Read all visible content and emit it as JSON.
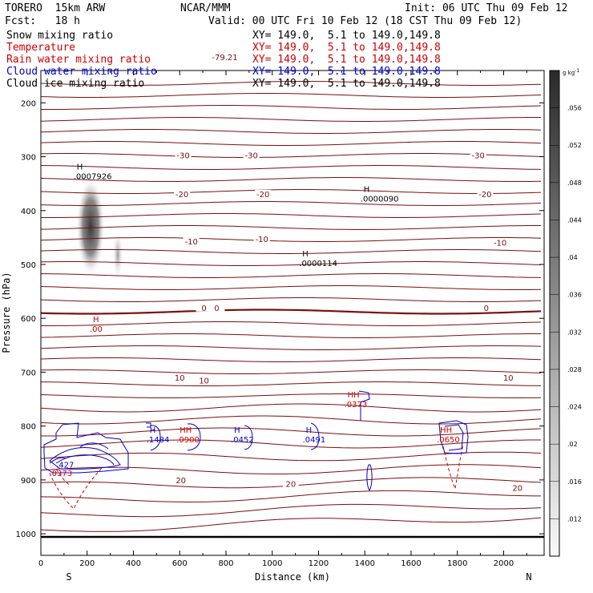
{
  "header": {
    "model": "TORERO  15km ARW",
    "org": "NCAR/MMM",
    "init": "Init: 06 UTC Thu 09 Feb 12",
    "fcst": "Fcst:   18 h",
    "valid": "Valid: 00 UTC Fri 10 Feb 12 (18 CST Thu 09 Feb 12)"
  },
  "fields": [
    {
      "name": "Snow mixing ratio",
      "xy": "XY= 149.0,  5.1 to 149.0,149.8",
      "color": "#000000"
    },
    {
      "name": "Temperature",
      "xy": "XY= 149.0,  5.1 to 149.0,149.8",
      "color": "#cc0000"
    },
    {
      "name": "Rain water mixing ratio",
      "xy": "XY= 149.0,  5.1 to 149.0,149.8",
      "color": "#cc0000"
    },
    {
      "name": "Cloud water mixing ratio",
      "xy": "XY= 149.0,  5.1 to 149.0,149.8",
      "color": "#0000cc"
    },
    {
      "name": "Cloud ice mixing ratio",
      "xy": "XY= 149.0,  5.1 to 149.0,149.8",
      "color": "#000000"
    }
  ],
  "chart_data": {
    "type": "contour_cross_section",
    "xlabel": "Distance (km)",
    "ylabel": "Pressure (hPa)",
    "xlim": [
      0,
      2175
    ],
    "ylim": [
      140,
      1040
    ],
    "x_ticks": [
      0,
      200,
      400,
      600,
      800,
      1000,
      1200,
      1400,
      1600,
      1800,
      2000
    ],
    "y_ticks": [
      200,
      300,
      400,
      500,
      600,
      700,
      800,
      900,
      1000
    ],
    "end_left": "S",
    "end_right": "N",
    "colorbar": {
      "unit": "g kg",
      "unit_exp": "-1",
      "labels": [
        ".012",
        ".016",
        ".02",
        ".024",
        ".028",
        ".032",
        ".036",
        ".04",
        ".044",
        ".048",
        ".052",
        ".056"
      ]
    },
    "temperature_labels": [
      {
        "x": 795,
        "p": 118,
        "text": "-79.21"
      },
      {
        "x": 615,
        "p": 300,
        "text": "-30"
      },
      {
        "x": 910,
        "p": 300,
        "text": "-30"
      },
      {
        "x": 1890,
        "p": 300,
        "text": "-30"
      },
      {
        "x": 610,
        "p": 372,
        "text": "-20"
      },
      {
        "x": 960,
        "p": 372,
        "text": "-20"
      },
      {
        "x": 1920,
        "p": 372,
        "text": "-20"
      },
      {
        "x": 650,
        "p": 460,
        "text": "-10"
      },
      {
        "x": 955,
        "p": 455,
        "text": "-10"
      },
      {
        "x": 1985,
        "p": 462,
        "text": "-10"
      },
      {
        "x": 705,
        "p": 583,
        "text": "0"
      },
      {
        "x": 760,
        "p": 583,
        "text": "0"
      },
      {
        "x": 1925,
        "p": 583,
        "text": "0"
      },
      {
        "x": 600,
        "p": 713,
        "text": "10"
      },
      {
        "x": 705,
        "p": 718,
        "text": "10"
      },
      {
        "x": 2020,
        "p": 713,
        "text": "10"
      },
      {
        "x": 605,
        "p": 903,
        "text": "20"
      },
      {
        "x": 1080,
        "p": 910,
        "text": "20"
      },
      {
        "x": 2060,
        "p": 917,
        "text": "20"
      }
    ],
    "extrema_labels": [
      {
        "x": 155,
        "p": 327,
        "h": "H",
        "value": ".0007926",
        "color": "#000000"
      },
      {
        "x": 1395,
        "p": 368,
        "h": "H",
        "value": ".0000090",
        "color": "#000000"
      },
      {
        "x": 1130,
        "p": 488,
        "h": "H",
        "value": ".0000114",
        "color": "#000000"
      },
      {
        "x": 225,
        "p": 610,
        "h": "H",
        "value": ".00",
        "color": "#cc0000"
      },
      {
        "x": 470,
        "p": 815,
        "h": "H",
        "value": ".1484",
        "color": "#0000cc"
      },
      {
        "x": 600,
        "p": 815,
        "h": "HH",
        "value": ".0900",
        "color": "#cc0000"
      },
      {
        "x": 835,
        "p": 815,
        "h": "H",
        "value": ".0452",
        "color": "#0000cc"
      },
      {
        "x": 1145,
        "p": 815,
        "h": "H",
        "value": ".0491",
        "color": "#0000cc"
      },
      {
        "x": 1325,
        "p": 750,
        "h": "HH",
        "value": ".0373",
        "color": "#cc0000"
      },
      {
        "x": 1725,
        "p": 815,
        "h": "HH",
        "value": ".0650",
        "color": "#cc0000"
      },
      {
        "x": 80,
        "p": 862,
        "h": "",
        "value": ".427",
        "color": "#0000cc"
      },
      {
        "x": 50,
        "p": 878,
        "h": "",
        "value": ".0373",
        "color": "#cc0000"
      }
    ]
  }
}
